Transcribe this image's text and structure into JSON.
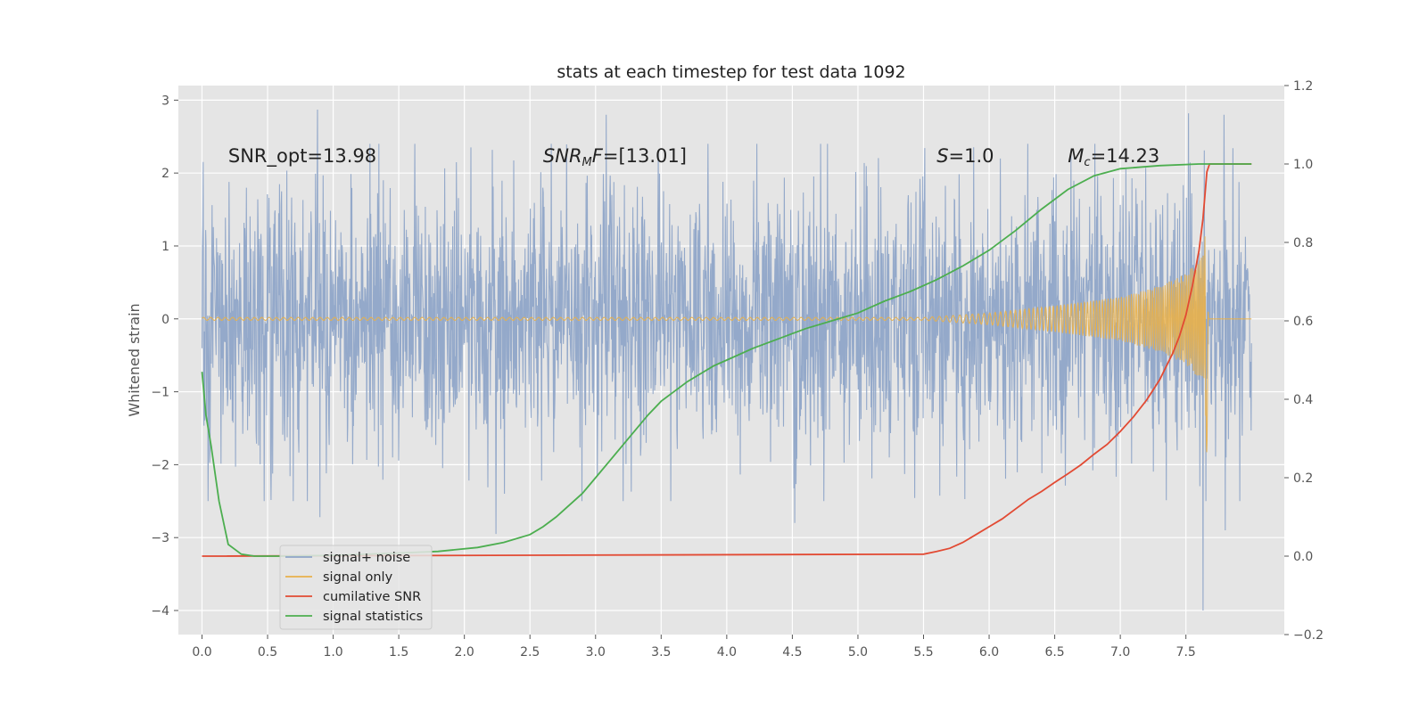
{
  "chart_data": {
    "type": "line",
    "title": "stats at each timestep for test data 1092",
    "ylabel": "Whitened strain",
    "xlabel": "",
    "xlim": [
      -0.18,
      8.25
    ],
    "ylim": [
      -4.33,
      3.2
    ],
    "y2lim": [
      -0.2,
      1.2
    ],
    "xticks": [
      "0.0",
      "0.5",
      "1.0",
      "1.5",
      "2.0",
      "2.5",
      "3.0",
      "3.5",
      "4.0",
      "4.5",
      "5.0",
      "5.5",
      "6.0",
      "6.5",
      "7.0",
      "7.5"
    ],
    "yticks": [
      "−4",
      "−3",
      "−2",
      "−1",
      "0",
      "1",
      "2",
      "3"
    ],
    "y2ticks": [
      "−0.2",
      "0.0",
      "0.2",
      "0.4",
      "0.6",
      "0.8",
      "1.0",
      "1.2"
    ],
    "grid": true,
    "legend_location": "lower-left",
    "annotations": [
      {
        "x": 0.2,
        "y": 2.15,
        "parts": [
          {
            "text": "SNR_opt=13.98",
            "italic": false
          }
        ]
      },
      {
        "x": 2.6,
        "y": 2.15,
        "parts": [
          {
            "text": "SNR",
            "italic": true
          },
          {
            "text": "M",
            "italic": true,
            "sub": true
          },
          {
            "text": "F",
            "italic": true
          },
          {
            "text": "=[13.01]",
            "italic": false
          }
        ]
      },
      {
        "x": 5.6,
        "y": 2.15,
        "parts": [
          {
            "text": "S",
            "italic": true
          },
          {
            "text": "=1.0",
            "italic": false
          }
        ]
      },
      {
        "x": 6.6,
        "y": 2.15,
        "parts": [
          {
            "text": "M",
            "italic": true
          },
          {
            "text": "c",
            "italic": true,
            "sub": true
          },
          {
            "text": "=14.23",
            "italic": false
          }
        ]
      }
    ],
    "series": [
      {
        "name": "signal+ noise",
        "axis": "left",
        "kind": "noise",
        "color": "#8fa5c8",
        "x_range": [
          0.0,
          8.0
        ],
        "y_range": [
          -4.0,
          2.87
        ],
        "peaks": [
          {
            "x": 0.88,
            "y": 2.87
          },
          {
            "x": 3.08,
            "y": 2.8
          },
          {
            "x": 7.52,
            "y": 2.82
          },
          {
            "x": 7.79,
            "y": 2.8
          },
          {
            "x": 0.9,
            "y": -2.72
          },
          {
            "x": 2.24,
            "y": -2.95
          },
          {
            "x": 4.52,
            "y": -2.8
          },
          {
            "x": 7.63,
            "y": -4.0
          },
          {
            "x": 7.8,
            "y": -2.9
          }
        ]
      },
      {
        "name": "signal only",
        "axis": "left",
        "kind": "chirp",
        "color": "#e8b04a",
        "x_range": [
          0.0,
          8.0
        ],
        "envelope": [
          [
            0,
            0.02
          ],
          [
            5.5,
            0.02
          ],
          [
            6.0,
            0.08
          ],
          [
            6.5,
            0.18
          ],
          [
            7.0,
            0.3
          ],
          [
            7.3,
            0.45
          ],
          [
            7.5,
            0.62
          ],
          [
            7.64,
            0.9
          ],
          [
            7.66,
            1.9
          ],
          [
            7.67,
            0.0
          ],
          [
            8.0,
            0.0
          ]
        ]
      },
      {
        "name": "cumilative SNR",
        "axis": "right",
        "kind": "line",
        "color": "#e24a33",
        "points": [
          [
            0,
            0.0
          ],
          [
            5.5,
            0.005
          ],
          [
            5.6,
            0.012
          ],
          [
            5.7,
            0.02
          ],
          [
            5.8,
            0.035
          ],
          [
            5.9,
            0.055
          ],
          [
            6.0,
            0.075
          ],
          [
            6.1,
            0.095
          ],
          [
            6.2,
            0.12
          ],
          [
            6.3,
            0.145
          ],
          [
            6.4,
            0.165
          ],
          [
            6.5,
            0.188
          ],
          [
            6.6,
            0.21
          ],
          [
            6.7,
            0.233
          ],
          [
            6.8,
            0.26
          ],
          [
            6.9,
            0.285
          ],
          [
            7.0,
            0.318
          ],
          [
            7.1,
            0.355
          ],
          [
            7.2,
            0.398
          ],
          [
            7.3,
            0.45
          ],
          [
            7.4,
            0.518
          ],
          [
            7.45,
            0.56
          ],
          [
            7.5,
            0.615
          ],
          [
            7.55,
            0.69
          ],
          [
            7.6,
            0.78
          ],
          [
            7.63,
            0.86
          ],
          [
            7.66,
            0.98
          ],
          [
            7.68,
            1.0
          ],
          [
            8.0,
            1.0
          ]
        ]
      },
      {
        "name": "signal statistics",
        "axis": "right",
        "kind": "line",
        "color": "#4cae4f",
        "points": [
          [
            0,
            0.47
          ],
          [
            0.03,
            0.36
          ],
          [
            0.07,
            0.28
          ],
          [
            0.13,
            0.14
          ],
          [
            0.2,
            0.03
          ],
          [
            0.3,
            0.005
          ],
          [
            0.4,
            0.0
          ],
          [
            0.6,
            0.0
          ],
          [
            1.0,
            0.002
          ],
          [
            1.5,
            0.008
          ],
          [
            1.8,
            0.012
          ],
          [
            2.1,
            0.022
          ],
          [
            2.3,
            0.035
          ],
          [
            2.5,
            0.055
          ],
          [
            2.6,
            0.075
          ],
          [
            2.7,
            0.1
          ],
          [
            2.8,
            0.13
          ],
          [
            2.9,
            0.16
          ],
          [
            3.0,
            0.2
          ],
          [
            3.1,
            0.24
          ],
          [
            3.2,
            0.28
          ],
          [
            3.3,
            0.32
          ],
          [
            3.4,
            0.36
          ],
          [
            3.5,
            0.395
          ],
          [
            3.6,
            0.42
          ],
          [
            3.7,
            0.445
          ],
          [
            3.8,
            0.465
          ],
          [
            3.9,
            0.485
          ],
          [
            4.0,
            0.5
          ],
          [
            4.2,
            0.53
          ],
          [
            4.4,
            0.555
          ],
          [
            4.6,
            0.58
          ],
          [
            4.8,
            0.6
          ],
          [
            5.0,
            0.62
          ],
          [
            5.2,
            0.65
          ],
          [
            5.4,
            0.675
          ],
          [
            5.5,
            0.69
          ],
          [
            5.6,
            0.705
          ],
          [
            5.8,
            0.74
          ],
          [
            6.0,
            0.78
          ],
          [
            6.2,
            0.83
          ],
          [
            6.4,
            0.885
          ],
          [
            6.6,
            0.935
          ],
          [
            6.8,
            0.97
          ],
          [
            7.0,
            0.988
          ],
          [
            7.3,
            0.996
          ],
          [
            7.6,
            1.0
          ],
          [
            8.0,
            1.0
          ]
        ]
      }
    ]
  }
}
